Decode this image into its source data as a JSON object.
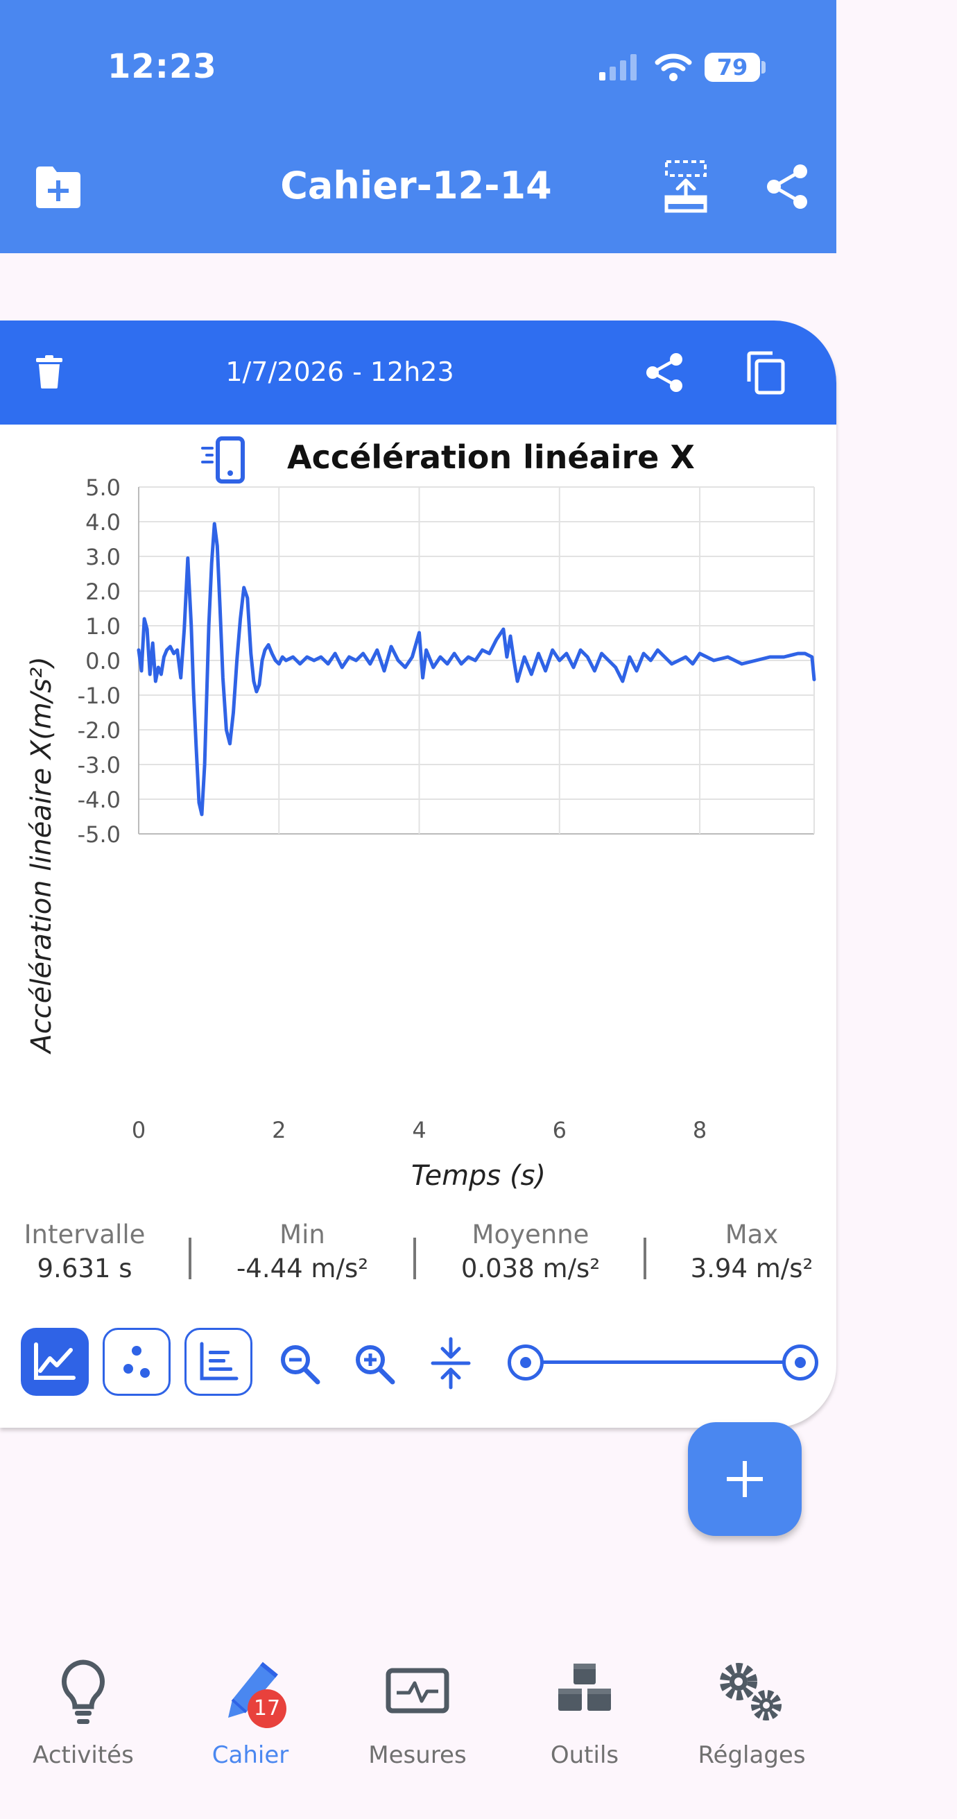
{
  "status_bar": {
    "time": "12:23",
    "battery": "79"
  },
  "header": {
    "title": "Cahier-12-14"
  },
  "card": {
    "date": "1/7/2026 - 12h23"
  },
  "chart_data": {
    "type": "line",
    "title": "Accélération linéaire X",
    "xlabel": "Temps (s)",
    "ylabel": "Accélération linéaire X(m/s²)",
    "xlim": [
      0,
      9.631
    ],
    "ylim": [
      -5,
      5
    ],
    "x_ticks": [
      "0",
      "2",
      "4",
      "6",
      "8"
    ],
    "y_ticks": [
      "5.0",
      "4.0",
      "3.0",
      "2.0",
      "1.0",
      "0.0",
      "-1.0",
      "-2.0",
      "-3.0",
      "-4.0",
      "-5.0"
    ],
    "grid": true,
    "color": "#2f63e6",
    "series": [
      {
        "x": [
          0.0,
          0.04,
          0.08,
          0.12,
          0.16,
          0.2,
          0.24,
          0.28,
          0.32,
          0.36,
          0.4,
          0.45,
          0.5,
          0.55,
          0.6,
          0.65,
          0.7,
          0.75,
          0.78,
          0.82,
          0.86,
          0.9,
          0.94,
          0.97,
          1.0,
          1.04,
          1.08,
          1.12,
          1.16,
          1.2,
          1.25,
          1.3,
          1.35,
          1.4,
          1.45,
          1.5,
          1.55,
          1.6,
          1.64,
          1.68,
          1.72,
          1.76,
          1.8,
          1.85,
          1.9,
          1.95,
          2.0,
          2.05,
          2.1,
          2.2,
          2.3,
          2.4,
          2.5,
          2.6,
          2.7,
          2.8,
          2.9,
          3.0,
          3.1,
          3.2,
          3.3,
          3.4,
          3.5,
          3.6,
          3.7,
          3.8,
          3.9,
          4.0,
          4.05,
          4.1,
          4.2,
          4.3,
          4.4,
          4.5,
          4.6,
          4.7,
          4.8,
          4.9,
          5.0,
          5.1,
          5.2,
          5.25,
          5.3,
          5.35,
          5.4,
          5.5,
          5.6,
          5.7,
          5.8,
          5.9,
          6.0,
          6.1,
          6.2,
          6.3,
          6.4,
          6.5,
          6.6,
          6.7,
          6.8,
          6.9,
          7.0,
          7.1,
          7.2,
          7.3,
          7.4,
          7.5,
          7.6,
          7.7,
          7.8,
          7.9,
          8.0,
          8.2,
          8.4,
          8.6,
          8.8,
          9.0,
          9.2,
          9.4,
          9.5,
          9.6,
          9.631
        ],
        "y": [
          0.3,
          -0.3,
          1.2,
          0.9,
          -0.4,
          0.5,
          -0.6,
          -0.2,
          -0.4,
          0.1,
          0.3,
          0.4,
          0.2,
          0.3,
          -0.5,
          0.9,
          2.95,
          1.0,
          -0.8,
          -2.5,
          -4.1,
          -4.44,
          -3.0,
          -1.0,
          1.0,
          2.8,
          3.94,
          3.3,
          1.5,
          -0.5,
          -2.0,
          -2.4,
          -1.5,
          0.0,
          1.2,
          2.1,
          1.8,
          0.2,
          -0.6,
          -0.9,
          -0.7,
          0.0,
          0.3,
          0.45,
          0.2,
          0.0,
          -0.1,
          0.1,
          0.0,
          0.1,
          -0.1,
          0.1,
          0.0,
          0.1,
          -0.1,
          0.2,
          -0.2,
          0.1,
          0.0,
          0.2,
          -0.1,
          0.3,
          -0.3,
          0.4,
          0.0,
          -0.2,
          0.1,
          0.8,
          -0.5,
          0.3,
          -0.2,
          0.1,
          -0.1,
          0.2,
          -0.1,
          0.1,
          0.0,
          0.3,
          0.2,
          0.6,
          0.9,
          0.1,
          0.7,
          0.0,
          -0.6,
          0.1,
          -0.4,
          0.2,
          -0.3,
          0.3,
          0.0,
          0.2,
          -0.2,
          0.3,
          0.1,
          -0.3,
          0.2,
          0.0,
          -0.2,
          -0.6,
          0.1,
          -0.3,
          0.2,
          0.0,
          0.3,
          0.1,
          -0.1,
          0.0,
          0.1,
          -0.1,
          0.2,
          0.0,
          0.1,
          -0.1,
          0.0,
          0.1,
          0.1,
          0.2,
          0.2,
          0.1,
          -0.55
        ]
      }
    ]
  },
  "stats": [
    {
      "label": "Intervalle",
      "value": "9.631 s"
    },
    {
      "label": "Min",
      "value": "-4.44 m/s²"
    },
    {
      "label": "Moyenne",
      "value": "0.038 m/s²"
    },
    {
      "label": "Max",
      "value": "3.94 m/s²"
    }
  ],
  "fab": {
    "icon": "plus-icon"
  },
  "bottom_nav": {
    "items": [
      {
        "label": "Activités",
        "icon": "lightbulb-icon"
      },
      {
        "label": "Cahier",
        "icon": "notebook-pen-icon",
        "badge": "17",
        "active": true
      },
      {
        "label": "Mesures",
        "icon": "monitor-wave-icon"
      },
      {
        "label": "Outils",
        "icon": "cubes-icon"
      },
      {
        "label": "Réglages",
        "icon": "gears-icon"
      }
    ]
  },
  "colors": {
    "header": "#4a87f0",
    "card_header": "#2f6ef0",
    "accent": "#2f63e6",
    "nav_active": "#4a87f0",
    "nav_inactive": "#505a64",
    "badge": "#e8413c",
    "background": "#fdf6fc"
  }
}
